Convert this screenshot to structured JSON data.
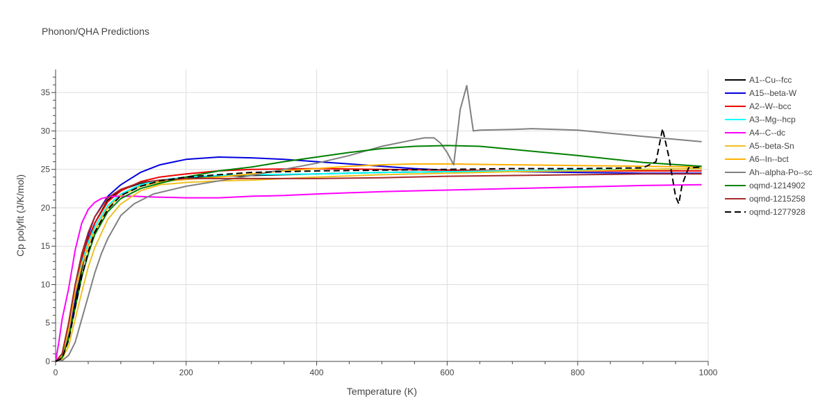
{
  "chart_data": {
    "type": "line",
    "title": "Phonon/QHA Predictions",
    "xlabel": "Temperature (K)",
    "ylabel": "Cp polyfit (J/K/mol)",
    "xlim": [
      0,
      1000
    ],
    "ylim": [
      0,
      38
    ],
    "xticks": [
      0,
      200,
      400,
      600,
      800,
      1000
    ],
    "yticks": [
      0,
      5,
      10,
      15,
      20,
      25,
      30,
      35
    ],
    "grid": true,
    "legend_position": "right",
    "series": [
      {
        "name": "A1--Cu--fcc",
        "color": "#000000",
        "dash": "solid",
        "x": [
          0,
          10,
          20,
          30,
          40,
          50,
          60,
          80,
          100,
          130,
          160,
          200,
          250,
          300,
          400,
          500,
          600,
          700,
          800,
          900,
          990
        ],
        "y": [
          0,
          0.5,
          3,
          7.5,
          12,
          15.5,
          18,
          21,
          22.3,
          23.2,
          23.6,
          23.9,
          24.1,
          24.2,
          24.4,
          24.6,
          24.7,
          24.8,
          24.9,
          25.0,
          25.1
        ]
      },
      {
        "name": "A15--beta-W",
        "color": "#0000dd",
        "dash": "solid",
        "x": [
          0,
          10,
          20,
          30,
          40,
          50,
          60,
          80,
          100,
          130,
          160,
          200,
          250,
          300,
          350,
          400,
          450,
          500,
          550,
          600,
          700,
          800,
          900,
          990
        ],
        "y": [
          0,
          0.5,
          3.5,
          8.5,
          13,
          16.5,
          18.8,
          21.5,
          23,
          24.6,
          25.6,
          26.3,
          26.6,
          26.5,
          26.3,
          26,
          25.7,
          25.4,
          25.1,
          24.9,
          24.7,
          24.6,
          24.5,
          24.5
        ]
      },
      {
        "name": "A2--W--bcc",
        "color": "#ee0000",
        "dash": "solid",
        "x": [
          0,
          10,
          20,
          30,
          40,
          50,
          60,
          80,
          100,
          130,
          160,
          200,
          250,
          300,
          400,
          500,
          600,
          700,
          800,
          900,
          990
        ],
        "y": [
          0,
          1,
          5,
          10,
          13.5,
          16,
          18,
          20.8,
          22.2,
          23.4,
          24,
          24.4,
          24.8,
          25,
          25.1,
          25,
          24.9,
          24.8,
          24.8,
          24.8,
          24.8
        ]
      },
      {
        "name": "A3--Mg--hcp",
        "color": "#00ffff",
        "dash": "solid",
        "x": [
          0,
          10,
          20,
          30,
          40,
          50,
          60,
          80,
          100,
          130,
          160,
          200,
          250,
          300,
          400,
          500,
          600,
          700,
          800,
          900,
          990
        ],
        "y": [
          0,
          0.6,
          4,
          9,
          12.8,
          15.5,
          17.5,
          20.3,
          21.8,
          23,
          23.6,
          24,
          24.2,
          24.3,
          24.4,
          24.6,
          24.7,
          24.8,
          24.9,
          25,
          25.1
        ]
      },
      {
        "name": "A4--C--dc",
        "color": "#ff00ff",
        "dash": "solid",
        "x": [
          0,
          5,
          10,
          15,
          20,
          25,
          30,
          40,
          50,
          60,
          70,
          80,
          90,
          100,
          120,
          150,
          200,
          250,
          300,
          350,
          400,
          500,
          600,
          700,
          800,
          900,
          990
        ],
        "y": [
          0,
          2.5,
          5.5,
          7.5,
          9.5,
          12,
          14.5,
          18,
          19.8,
          20.7,
          21.2,
          21.4,
          21.5,
          21.5,
          21.5,
          21.4,
          21.3,
          21.3,
          21.5,
          21.6,
          21.8,
          22.1,
          22.3,
          22.5,
          22.7,
          22.9,
          23
        ]
      },
      {
        "name": "A5--beta-Sn",
        "color": "#f0c020",
        "dash": "solid",
        "x": [
          0,
          10,
          20,
          30,
          40,
          50,
          60,
          80,
          100,
          130,
          160,
          200,
          250,
          300,
          400,
          500,
          600,
          700,
          800,
          900,
          990
        ],
        "y": [
          0,
          0.3,
          2,
          5.5,
          9,
          12.3,
          14.8,
          18.5,
          20.5,
          22.2,
          23,
          23.3,
          23.5,
          23.6,
          24,
          24.3,
          24.5,
          24.7,
          24.8,
          25,
          25.1
        ]
      },
      {
        "name": "A6--In--bct",
        "color": "#ffb000",
        "dash": "solid",
        "x": [
          0,
          10,
          20,
          30,
          40,
          50,
          60,
          80,
          100,
          130,
          160,
          200,
          250,
          300,
          350,
          400,
          450,
          500,
          550,
          600,
          700,
          800,
          900,
          990
        ],
        "y": [
          0,
          0.8,
          4,
          9,
          12.5,
          15,
          17,
          20,
          21.6,
          22.8,
          23.4,
          23.7,
          24,
          24.4,
          24.8,
          25.1,
          25.4,
          25.6,
          25.7,
          25.7,
          25.6,
          25.5,
          25.4,
          25.3
        ]
      },
      {
        "name": "Ah--alpha-Po--sc",
        "color": "#808080",
        "dash": "solid",
        "x": [
          0,
          10,
          20,
          30,
          40,
          50,
          60,
          70,
          80,
          100,
          120,
          150,
          200,
          250,
          300,
          350,
          400,
          450,
          500,
          540,
          565,
          580,
          590,
          600,
          610,
          620,
          630,
          640,
          650,
          700,
          730,
          800,
          900,
          990
        ],
        "y": [
          0,
          0.1,
          0.8,
          2.5,
          5.5,
          8.5,
          11.5,
          14,
          16,
          19,
          20.5,
          21.8,
          22.8,
          23.5,
          24.2,
          25,
          25.8,
          26.8,
          28,
          28.7,
          29.1,
          29.1,
          28.4,
          27.2,
          25.6,
          32.8,
          35.9,
          30,
          30.1,
          30.2,
          30.3,
          30.1,
          29.3,
          28.6
        ]
      },
      {
        "name": "oqmd-1214902",
        "color": "#008000",
        "dash": "solid",
        "x": [
          0,
          10,
          20,
          30,
          40,
          50,
          60,
          80,
          100,
          130,
          160,
          200,
          250,
          300,
          350,
          400,
          450,
          500,
          550,
          600,
          650,
          700,
          800,
          900,
          990
        ],
        "y": [
          0,
          0.5,
          3,
          7,
          11,
          14,
          16.5,
          19.5,
          21.2,
          22.5,
          23.2,
          24,
          24.8,
          25.3,
          26,
          26.6,
          27.2,
          27.7,
          28,
          28.1,
          28,
          27.6,
          26.8,
          25.9,
          25.4
        ]
      },
      {
        "name": "oqmd-1215258",
        "color": "#a52a2a",
        "dash": "solid",
        "x": [
          0,
          10,
          20,
          30,
          40,
          50,
          60,
          80,
          100,
          130,
          160,
          200,
          250,
          300,
          400,
          500,
          600,
          700,
          800,
          900,
          990
        ],
        "y": [
          0,
          1,
          5,
          10,
          14,
          16.8,
          18.8,
          21.3,
          22.4,
          23.3,
          23.6,
          23.8,
          23.8,
          23.8,
          23.8,
          23.9,
          24.1,
          24.2,
          24.3,
          24.4,
          24.4
        ]
      },
      {
        "name": "oqmd-1277928",
        "color": "#000000",
        "dash": "dash",
        "x": [
          0,
          10,
          20,
          30,
          40,
          50,
          60,
          80,
          100,
          130,
          160,
          200,
          250,
          300,
          400,
          500,
          600,
          700,
          800,
          900,
          920,
          930,
          940,
          950,
          955,
          960,
          970,
          990
        ],
        "y": [
          0,
          0.4,
          2.8,
          7,
          11,
          14.3,
          16.8,
          19.8,
          21.6,
          22.8,
          23.5,
          24,
          24.3,
          24.6,
          24.8,
          24.9,
          25,
          25.1,
          25.1,
          25.2,
          26,
          30.3,
          26.5,
          21.5,
          20.5,
          23,
          25.2,
          25.3
        ]
      }
    ]
  }
}
